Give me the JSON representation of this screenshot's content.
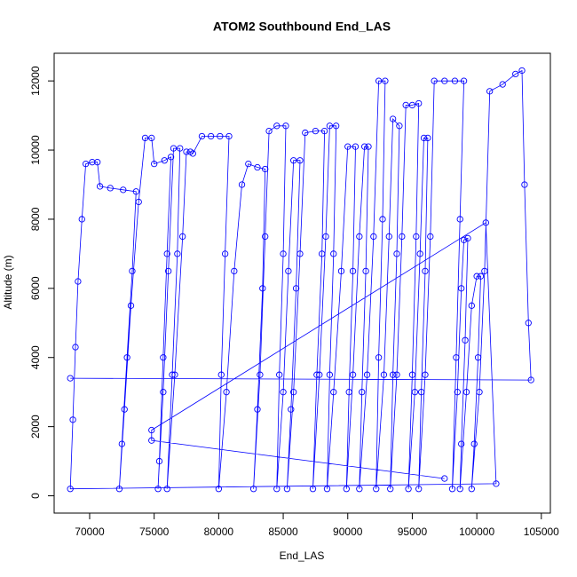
{
  "chart_data": {
    "type": "line",
    "title": "ATOM2 Southbound End_LAS",
    "x_label": "End_LAS",
    "y_label": "Altitude (m)",
    "color": "#0000ff",
    "markers": true,
    "xlim": [
      67250,
      105700
    ],
    "ylim": [
      -500,
      12800
    ],
    "xticks": [
      70000,
      75000,
      80000,
      85000,
      90000,
      95000,
      100000,
      105000
    ],
    "yticks": [
      0,
      2000,
      4000,
      6000,
      8000,
      10000,
      12000
    ],
    "x": [
      97500,
      74800,
      74800,
      100700,
      101500,
      68500,
      68700,
      68900,
      69100,
      69400,
      69700,
      70200,
      70600,
      70800,
      71600,
      72600,
      73600,
      73300,
      72900,
      72500,
      72300,
      72700,
      73200,
      73800,
      74300,
      74800,
      75000,
      75800,
      76300,
      76000,
      75700,
      75400,
      75300,
      75700,
      76100,
      76500,
      77000,
      76800,
      76400,
      76000,
      76600,
      77200,
      77500,
      77800,
      78000,
      78700,
      79400,
      80100,
      80800,
      80500,
      80200,
      80000,
      80600,
      81200,
      81800,
      82300,
      83000,
      83600,
      83400,
      83000,
      82700,
      83200,
      83600,
      83900,
      84500,
      85200,
      85000,
      84700,
      84500,
      85000,
      85400,
      85800,
      86300,
      86000,
      85600,
      85300,
      85800,
      86300,
      86700,
      87500,
      88200,
      88000,
      87600,
      87300,
      87800,
      88300,
      88600,
      89100,
      88900,
      88600,
      88400,
      88900,
      89500,
      90000,
      90600,
      90400,
      90100,
      89900,
      90400,
      90900,
      91300,
      91600,
      91400,
      91100,
      90900,
      91500,
      92000,
      92400,
      92900,
      92700,
      92400,
      92200,
      92800,
      93200,
      93500,
      94000,
      93800,
      93500,
      93300,
      93800,
      94200,
      94500,
      95000,
      95500,
      95300,
      95000,
      94700,
      95200,
      95600,
      95900,
      96200,
      96000,
      95700,
      95500,
      96000,
      96400,
      96700,
      97500,
      98300,
      99000,
      98700,
      98400,
      98100,
      98500,
      98800,
      99000,
      99300,
      99100,
      98800,
      98700,
      99200,
      99600,
      100000,
      100300,
      100100,
      99800,
      99600,
      100200,
      100600,
      101000,
      102000,
      103000,
      103500,
      103700,
      104000,
      104200,
      68500
    ],
    "values": [
      500,
      1600,
      1900,
      7900,
      350,
      200,
      2200,
      4300,
      6200,
      8000,
      9600,
      9650,
      9650,
      8950,
      8900,
      8850,
      8800,
      6500,
      4000,
      1500,
      200,
      2500,
      5500,
      8500,
      10350,
      10350,
      9600,
      9700,
      9800,
      7000,
      4000,
      1000,
      200,
      3000,
      6500,
      10050,
      10050,
      7000,
      3500,
      200,
      3500,
      7500,
      9950,
      9950,
      9900,
      10400,
      10400,
      10400,
      10400,
      7000,
      3500,
      200,
      3000,
      6500,
      9000,
      9600,
      9500,
      9450,
      6000,
      2500,
      200,
      3500,
      7500,
      10550,
      10700,
      10700,
      7000,
      3500,
      200,
      3000,
      6500,
      9700,
      9700,
      6000,
      2500,
      200,
      3000,
      7000,
      10500,
      10550,
      10550,
      7000,
      3500,
      200,
      3500,
      7500,
      10700,
      10700,
      7000,
      3500,
      200,
      3000,
      6500,
      10100,
      10100,
      6500,
      3000,
      200,
      3500,
      7500,
      10100,
      10100,
      6500,
      3000,
      200,
      3500,
      7500,
      12000,
      12000,
      8000,
      4000,
      200,
      3500,
      7500,
      10900,
      10700,
      7000,
      3500,
      200,
      3500,
      7500,
      11300,
      11300,
      11350,
      7500,
      3500,
      200,
      3000,
      7000,
      10350,
      10350,
      6500,
      3000,
      200,
      3500,
      7500,
      12000,
      12000,
      12000,
      12000,
      8000,
      4000,
      200,
      3000,
      6000,
      7400,
      7450,
      4500,
      1500,
      200,
      3000,
      5500,
      6350,
      6350,
      4000,
      1500,
      200,
      3000,
      6500,
      11700,
      11900,
      12200,
      12300,
      9000,
      5000,
      3350,
      3400
    ]
  }
}
